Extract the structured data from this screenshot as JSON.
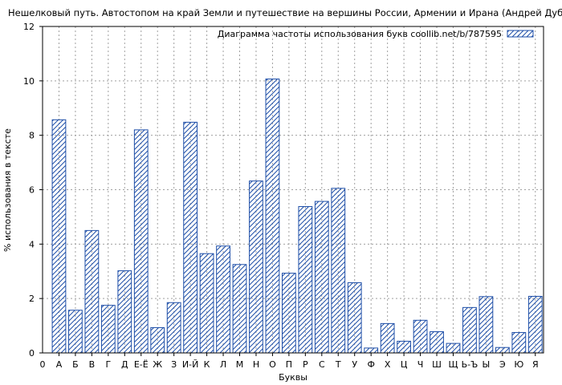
{
  "chart_data": {
    "type": "bar",
    "title": "Нешелковый путь. Автостопом на край Земли и путешествие на вершины России, Армении и Ирана (Андрей Дубровский)",
    "xlabel": "Буквы",
    "ylabel": "% использования в тексте",
    "legend": {
      "label": "Диаграмма частоты использования букв coollib.net/b/787595",
      "placement": "top-right"
    },
    "ylim": [
      0,
      12
    ],
    "yticks": [
      0,
      2,
      4,
      6,
      8,
      10,
      12
    ],
    "grid": true,
    "x_origin_label": "0",
    "categories": [
      "А",
      "Б",
      "В",
      "Г",
      "Д",
      "Е-Ё",
      "Ж",
      "З",
      "И-Й",
      "К",
      "Л",
      "М",
      "Н",
      "О",
      "П",
      "Р",
      "С",
      "Т",
      "У",
      "Ф",
      "Х",
      "Ц",
      "Ч",
      "Ш",
      "Щ",
      "Ь-Ъ",
      "Ы",
      "Э",
      "Ю",
      "Я"
    ],
    "values": [
      8.57,
      1.57,
      4.5,
      1.75,
      3.02,
      8.2,
      0.93,
      1.85,
      8.48,
      3.65,
      3.93,
      3.25,
      6.32,
      10.07,
      2.93,
      5.38,
      5.57,
      6.05,
      2.58,
      0.18,
      1.08,
      0.43,
      1.2,
      0.78,
      0.35,
      1.67,
      2.07,
      0.2,
      0.75,
      2.08
    ],
    "colors": {
      "bar_stroke": "#1f4fa8",
      "hatch": "#1f4fa8",
      "grid": "#a0a0a0",
      "axis": "#000000",
      "background": "#ffffff"
    }
  }
}
